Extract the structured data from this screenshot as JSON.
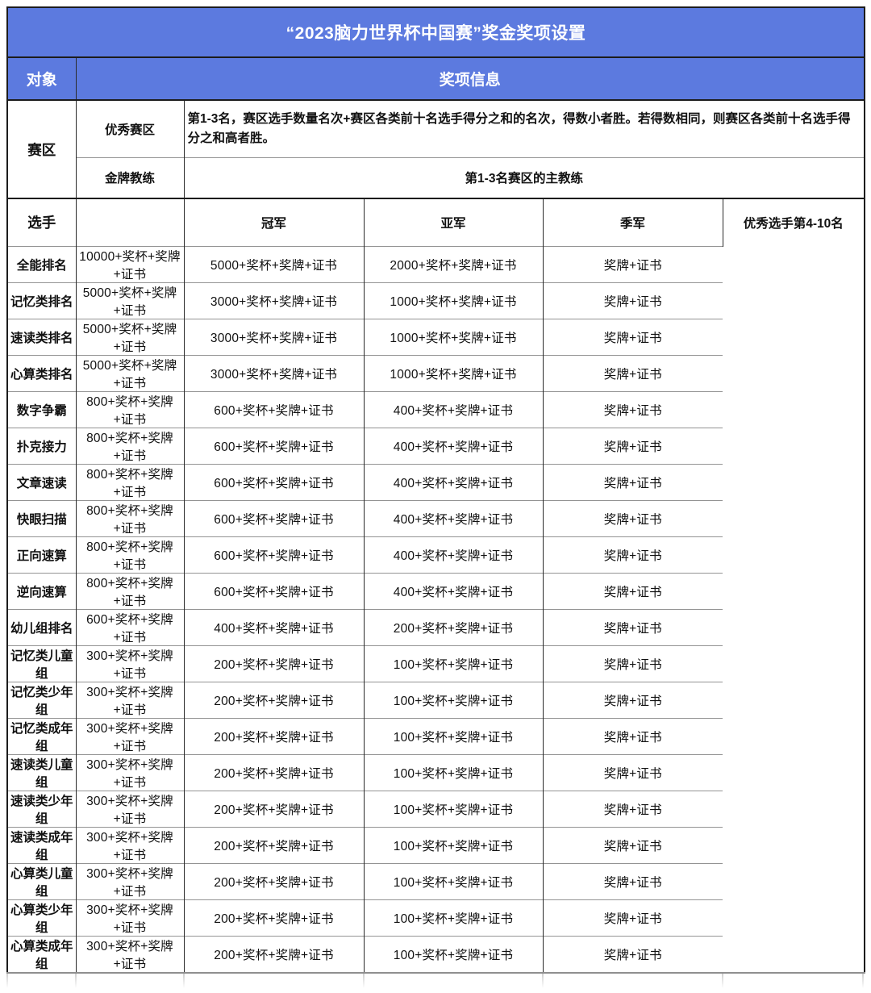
{
  "table": {
    "title": "“2023脑力世界杯中国赛”奖金奖项设置",
    "header": {
      "object_col": "对象",
      "info_col": "奖项信息"
    },
    "region_section": {
      "group_label": "赛区",
      "rows": [
        {
          "label": "优秀赛区",
          "value": "第1-3名，赛区选手数量名次+赛区各类前十名选手得分之和的名次，得数小者胜。若得数相同，则赛区各类前十名选手得分之和高者胜。"
        },
        {
          "label": "金牌教练",
          "value": "第1-3名赛区的主教练"
        }
      ]
    },
    "player_section": {
      "group_label": "选手",
      "columns": [
        "冠军",
        "亚军",
        "季军",
        "优秀选手第4-10名"
      ],
      "rows": [
        {
          "label": "全能排名",
          "values": [
            "10000+奖杯+奖牌+证书",
            "5000+奖杯+奖牌+证书",
            "2000+奖杯+奖牌+证书",
            "奖牌+证书"
          ]
        },
        {
          "label": "记忆类排名",
          "values": [
            "5000+奖杯+奖牌+证书",
            "3000+奖杯+奖牌+证书",
            "1000+奖杯+奖牌+证书",
            "奖牌+证书"
          ]
        },
        {
          "label": "速读类排名",
          "values": [
            "5000+奖杯+奖牌+证书",
            "3000+奖杯+奖牌+证书",
            "1000+奖杯+奖牌+证书",
            "奖牌+证书"
          ]
        },
        {
          "label": "心算类排名",
          "values": [
            "5000+奖杯+奖牌+证书",
            "3000+奖杯+奖牌+证书",
            "1000+奖杯+奖牌+证书",
            "奖牌+证书"
          ]
        },
        {
          "label": "数字争霸",
          "values": [
            "800+奖杯+奖牌+证书",
            "600+奖杯+奖牌+证书",
            "400+奖杯+奖牌+证书",
            "奖牌+证书"
          ]
        },
        {
          "label": "扑克接力",
          "values": [
            "800+奖杯+奖牌+证书",
            "600+奖杯+奖牌+证书",
            "400+奖杯+奖牌+证书",
            "奖牌+证书"
          ]
        },
        {
          "label": "文章速读",
          "values": [
            "800+奖杯+奖牌+证书",
            "600+奖杯+奖牌+证书",
            "400+奖杯+奖牌+证书",
            "奖牌+证书"
          ]
        },
        {
          "label": "快眼扫描",
          "values": [
            "800+奖杯+奖牌+证书",
            "600+奖杯+奖牌+证书",
            "400+奖杯+奖牌+证书",
            "奖牌+证书"
          ]
        },
        {
          "label": "正向速算",
          "values": [
            "800+奖杯+奖牌+证书",
            "600+奖杯+奖牌+证书",
            "400+奖杯+奖牌+证书",
            "奖牌+证书"
          ]
        },
        {
          "label": "逆向速算",
          "values": [
            "800+奖杯+奖牌+证书",
            "600+奖杯+奖牌+证书",
            "400+奖杯+奖牌+证书",
            "奖牌+证书"
          ]
        },
        {
          "label": "幼儿组排名",
          "values": [
            "600+奖杯+奖牌+证书",
            "400+奖杯+奖牌+证书",
            "200+奖杯+奖牌+证书",
            "奖牌+证书"
          ]
        },
        {
          "label": "记忆类儿童组",
          "values": [
            "300+奖杯+奖牌+证书",
            "200+奖杯+奖牌+证书",
            "100+奖杯+奖牌+证书",
            "奖牌+证书"
          ]
        },
        {
          "label": "记忆类少年组",
          "values": [
            "300+奖杯+奖牌+证书",
            "200+奖杯+奖牌+证书",
            "100+奖杯+奖牌+证书",
            "奖牌+证书"
          ]
        },
        {
          "label": "记忆类成年组",
          "values": [
            "300+奖杯+奖牌+证书",
            "200+奖杯+奖牌+证书",
            "100+奖杯+奖牌+证书",
            "奖牌+证书"
          ]
        },
        {
          "label": "速读类儿童组",
          "values": [
            "300+奖杯+奖牌+证书",
            "200+奖杯+奖牌+证书",
            "100+奖杯+奖牌+证书",
            "奖牌+证书"
          ]
        },
        {
          "label": "速读类少年组",
          "values": [
            "300+奖杯+奖牌+证书",
            "200+奖杯+奖牌+证书",
            "100+奖杯+奖牌+证书",
            "奖牌+证书"
          ]
        },
        {
          "label": "速读类成年组",
          "values": [
            "300+奖杯+奖牌+证书",
            "200+奖杯+奖牌+证书",
            "100+奖杯+奖牌+证书",
            "奖牌+证书"
          ]
        },
        {
          "label": "心算类儿童组",
          "values": [
            "300+奖杯+奖牌+证书",
            "200+奖杯+奖牌+证书",
            "100+奖杯+奖牌+证书",
            "奖牌+证书"
          ]
        },
        {
          "label": "心算类少年组",
          "values": [
            "300+奖杯+奖牌+证书",
            "200+奖杯+奖牌+证书",
            "100+奖杯+奖牌+证书",
            "奖牌+证书"
          ]
        },
        {
          "label": "心算类成年组",
          "values": [
            "300+奖杯+奖牌+证书",
            "200+奖杯+奖牌+证书",
            "100+奖杯+奖牌+证书",
            "奖牌+证书"
          ]
        }
      ]
    },
    "colors": {
      "header_blue": "#5C7ADF",
      "header_text": "#ffffff",
      "border_dark": "#1c1c1c",
      "border_gray": "#949494"
    }
  }
}
